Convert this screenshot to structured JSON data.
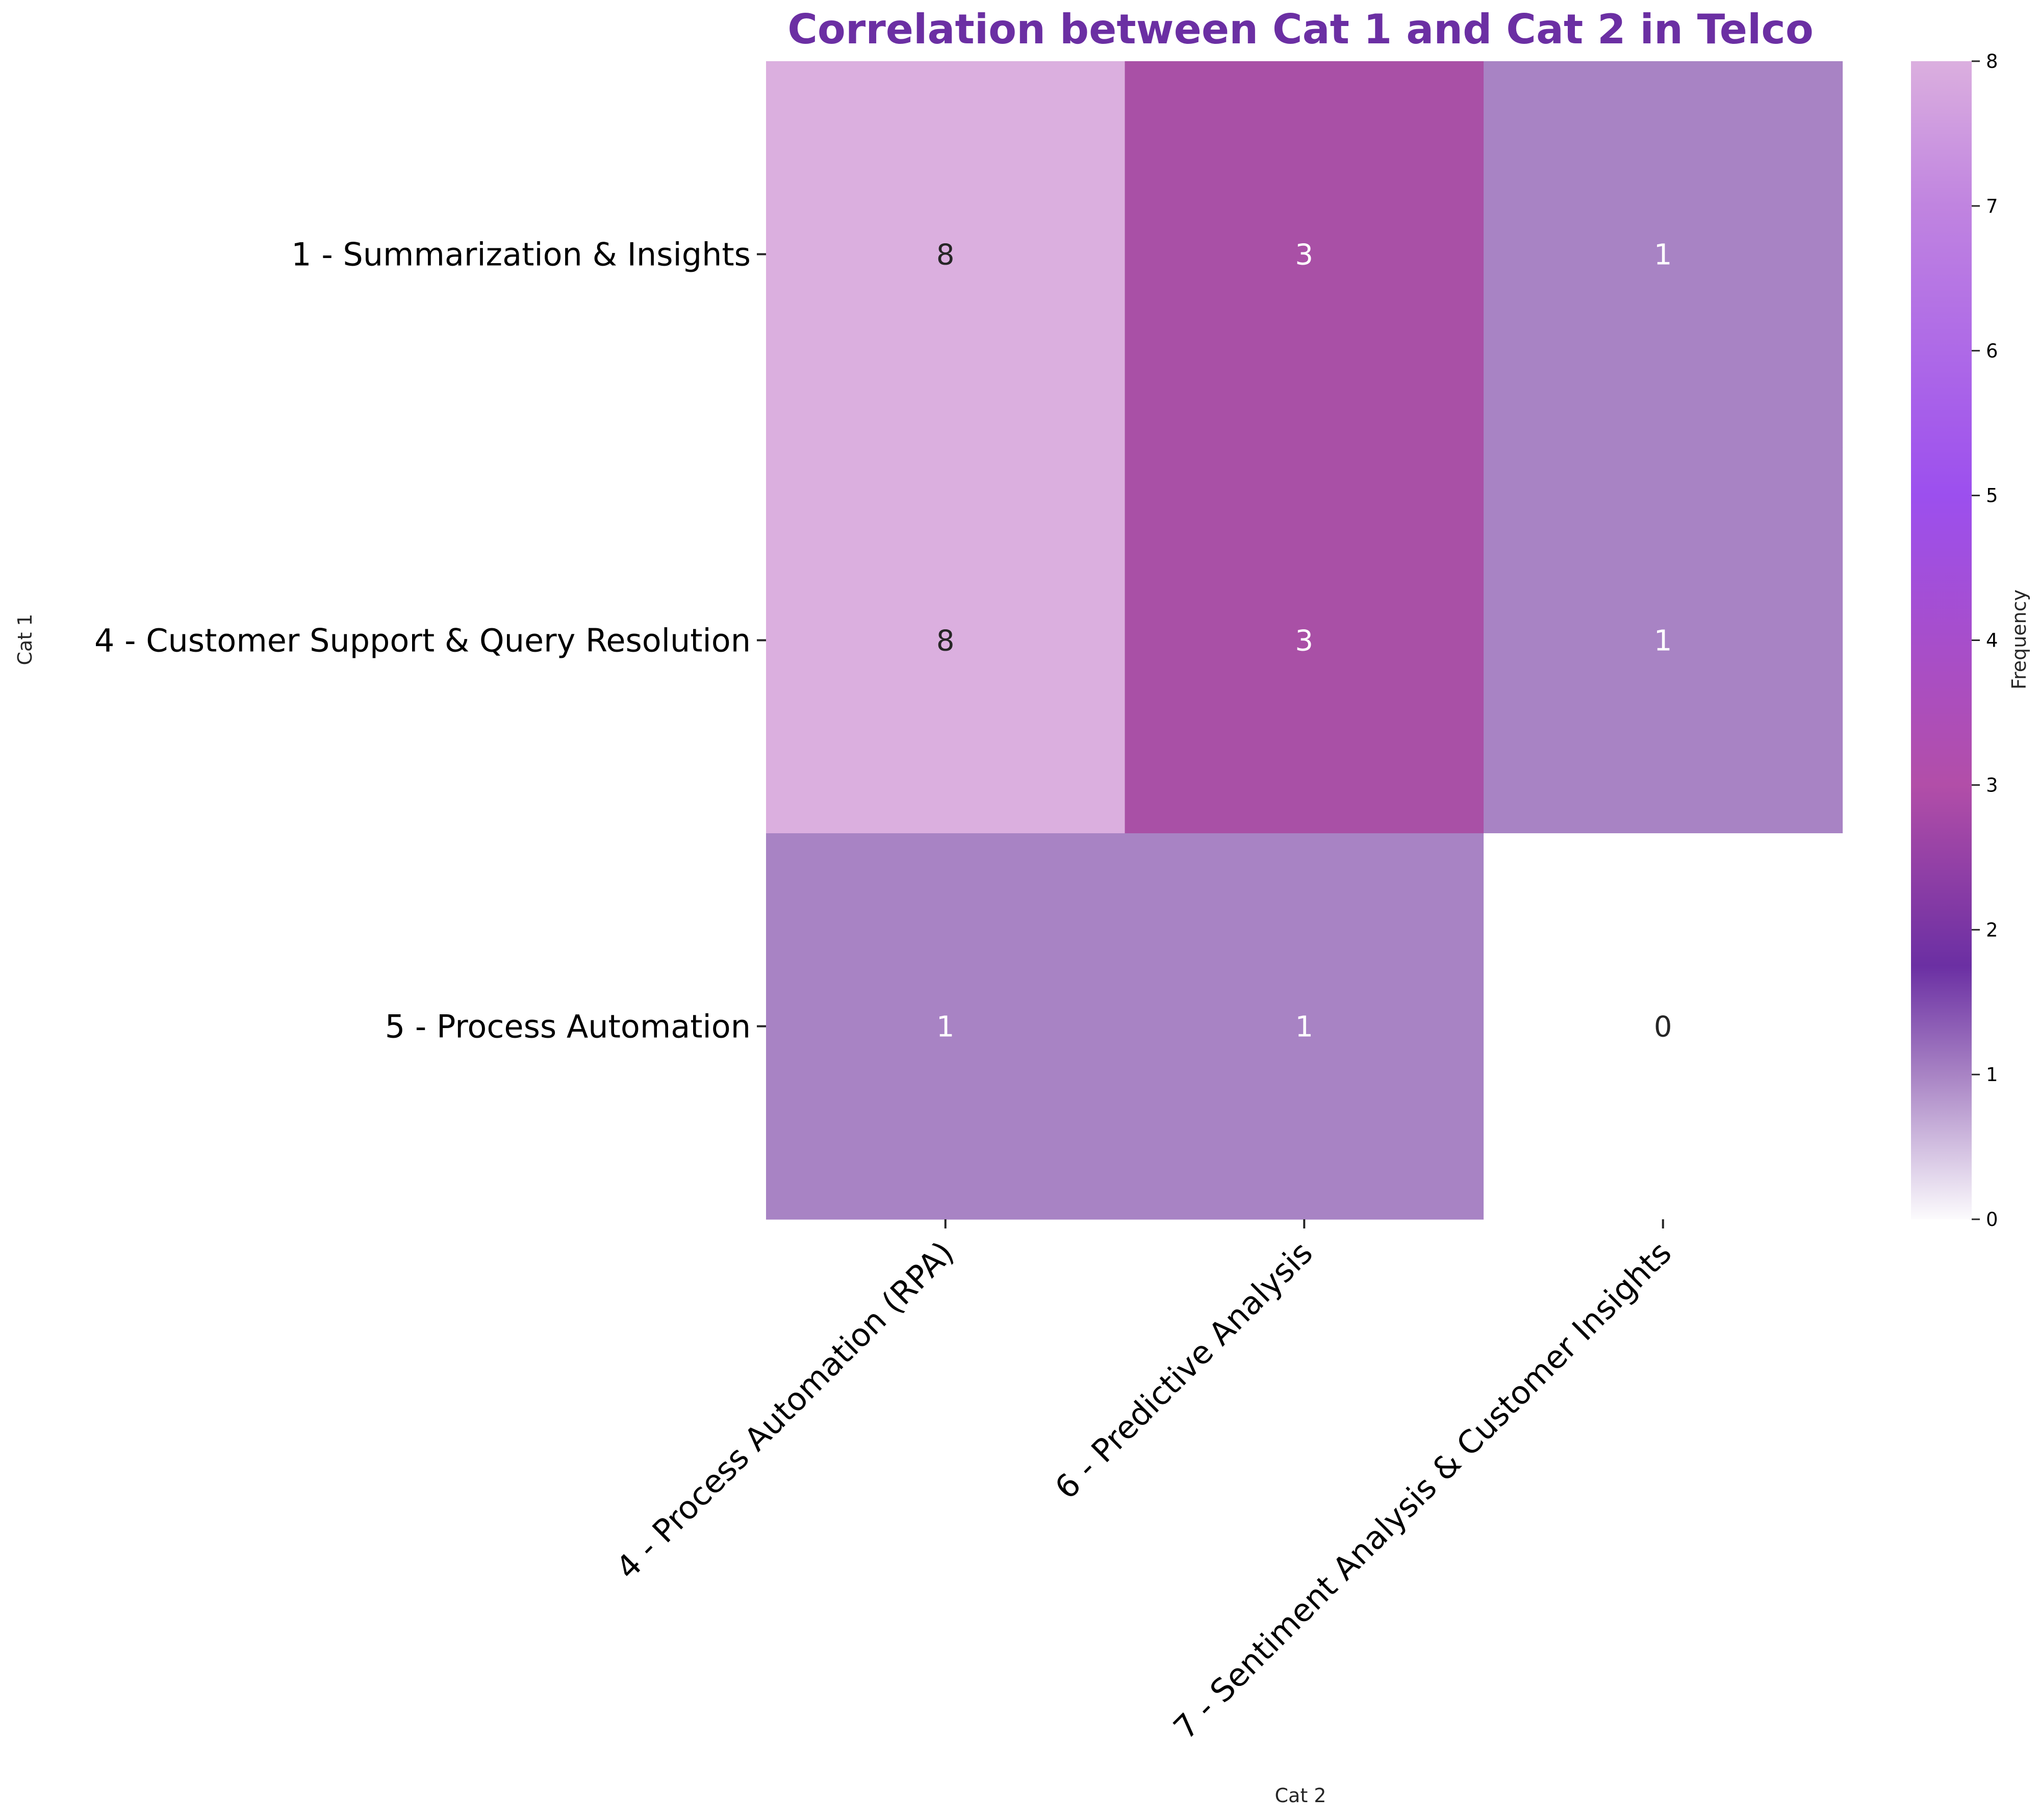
{
  "chart_data": {
    "type": "heatmap",
    "title": "Correlation between Cat 1 and Cat 2 in Telco",
    "xlabel": "Cat 2",
    "ylabel": "Cat 1",
    "rows": [
      "1 - Summarization & Insights",
      "4 - Customer Support & Query Resolution",
      "5 - Process Automation"
    ],
    "columns": [
      "4 - Process Automation (RPA)",
      "6 - Predictive Analysis",
      "7 - Sentiment Analysis & Customer Insights"
    ],
    "values": [
      [
        8,
        3,
        1
      ],
      [
        8,
        3,
        1
      ],
      [
        1,
        1,
        0
      ]
    ],
    "cell_colors": [
      [
        "#dbafdf",
        "#a950a6",
        "#a883c4"
      ],
      [
        "#dbafdf",
        "#a950a6",
        "#a883c4"
      ],
      [
        "#a883c4",
        "#a883c4",
        "#ffffff"
      ]
    ],
    "annotation_colors": [
      [
        "#262626",
        "#ffffff",
        "#ffffff"
      ],
      [
        "#262626",
        "#ffffff",
        "#ffffff"
      ],
      [
        "#ffffff",
        "#ffffff",
        "#262626"
      ]
    ],
    "colorbar": {
      "label": "Frequency",
      "range": [
        0,
        8
      ],
      "ticks": [
        0,
        1,
        2,
        3,
        4,
        5,
        6,
        7,
        8
      ],
      "gradient_stops": [
        {
          "value": 0,
          "color": "#fcfbfd"
        },
        {
          "value": 1,
          "color": "#a883c4"
        },
        {
          "value": 1.75,
          "color": "#6b2fa3"
        },
        {
          "value": 3,
          "color": "#b24ea8"
        },
        {
          "value": 5,
          "color": "#9c4fee"
        },
        {
          "value": 7,
          "color": "#c084e0"
        },
        {
          "value": 8,
          "color": "#dbafdf"
        }
      ]
    },
    "title_color": "#6b2fa3"
  }
}
